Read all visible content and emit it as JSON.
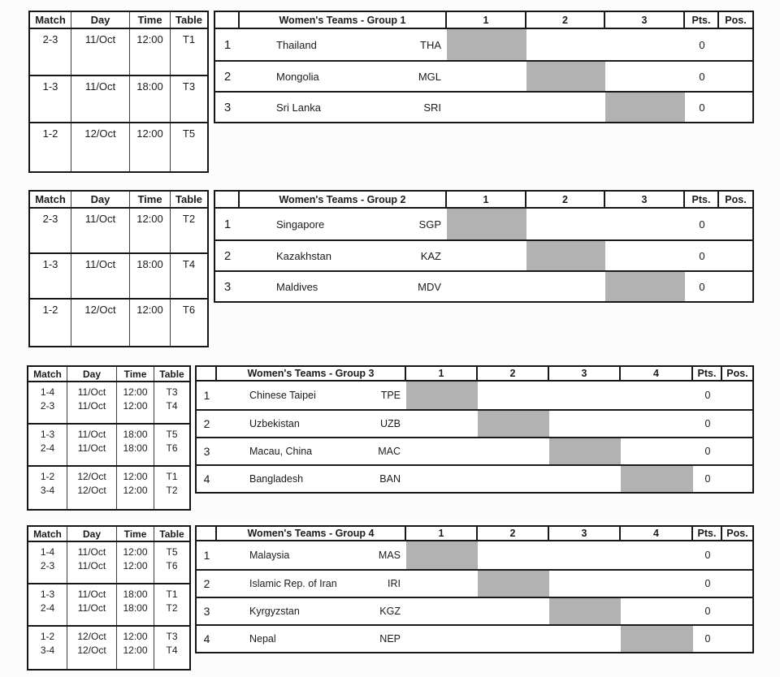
{
  "colors": {
    "grid": "#161616",
    "diagonal_fill": "#b2b2b2",
    "paper": "#fcfcfc"
  },
  "schedule_header": [
    "Match",
    "Day",
    "Time",
    "Table"
  ],
  "sections": [
    {
      "group_title": "Women's Teams - Group 1",
      "round_columns": [
        "1",
        "2",
        "3"
      ],
      "pts_header": "Pts.",
      "pos_header": "Pos.",
      "schedule_blocks": [
        [
          [
            "2-3",
            "11/Oct",
            "12:00",
            "T1"
          ]
        ],
        [
          [
            "1-3",
            "11/Oct",
            "18:00",
            "T3"
          ]
        ],
        [
          [
            "1-2",
            "12/Oct",
            "12:00",
            "T5"
          ]
        ]
      ],
      "teams": [
        {
          "rank": "1",
          "name": "Thailand",
          "code": "THA",
          "points": "0",
          "position": ""
        },
        {
          "rank": "2",
          "name": "Mongolia",
          "code": "MGL",
          "points": "0",
          "position": ""
        },
        {
          "rank": "3",
          "name": "Sri Lanka",
          "code": "SRI",
          "points": "0",
          "position": ""
        }
      ]
    },
    {
      "group_title": "Women's Teams - Group 2",
      "round_columns": [
        "1",
        "2",
        "3"
      ],
      "pts_header": "Pts.",
      "pos_header": "Pos.",
      "schedule_blocks": [
        [
          [
            "2-3",
            "11/Oct",
            "12:00",
            "T2"
          ]
        ],
        [
          [
            "1-3",
            "11/Oct",
            "18:00",
            "T4"
          ]
        ],
        [
          [
            "1-2",
            "12/Oct",
            "12:00",
            "T6"
          ]
        ]
      ],
      "teams": [
        {
          "rank": "1",
          "name": "Singapore",
          "code": "SGP",
          "points": "0",
          "position": ""
        },
        {
          "rank": "2",
          "name": "Kazakhstan",
          "code": "KAZ",
          "points": "0",
          "position": ""
        },
        {
          "rank": "3",
          "name": "Maldives",
          "code": "MDV",
          "points": "0",
          "position": ""
        }
      ]
    },
    {
      "group_title": "Women's Teams - Group 3",
      "round_columns": [
        "1",
        "2",
        "3",
        "4"
      ],
      "pts_header": "Pts.",
      "pos_header": "Pos.",
      "schedule_blocks": [
        [
          [
            "1-4",
            "11/Oct",
            "12:00",
            "T3"
          ],
          [
            "2-3",
            "11/Oct",
            "12:00",
            "T4"
          ]
        ],
        [
          [
            "1-3",
            "11/Oct",
            "18:00",
            "T5"
          ],
          [
            "2-4",
            "11/Oct",
            "18:00",
            "T6"
          ]
        ],
        [
          [
            "1-2",
            "12/Oct",
            "12:00",
            "T1"
          ],
          [
            "3-4",
            "12/Oct",
            "12:00",
            "T2"
          ]
        ]
      ],
      "teams": [
        {
          "rank": "1",
          "name": "Chinese Taipei",
          "code": "TPE",
          "points": "0",
          "position": ""
        },
        {
          "rank": "2",
          "name": "Uzbekistan",
          "code": "UZB",
          "points": "0",
          "position": ""
        },
        {
          "rank": "3",
          "name": "Macau, China",
          "code": "MAC",
          "points": "0",
          "position": ""
        },
        {
          "rank": "4",
          "name": "Bangladesh",
          "code": "BAN",
          "points": "0",
          "position": ""
        }
      ]
    },
    {
      "group_title": "Women's Teams - Group 4",
      "round_columns": [
        "1",
        "2",
        "3",
        "4"
      ],
      "pts_header": "Pts.",
      "pos_header": "Pos.",
      "schedule_blocks": [
        [
          [
            "1-4",
            "11/Oct",
            "12:00",
            "T5"
          ],
          [
            "2-3",
            "11/Oct",
            "12:00",
            "T6"
          ]
        ],
        [
          [
            "1-3",
            "11/Oct",
            "18:00",
            "T1"
          ],
          [
            "2-4",
            "11/Oct",
            "18:00",
            "T2"
          ]
        ],
        [
          [
            "1-2",
            "12/Oct",
            "12:00",
            "T3"
          ],
          [
            "3-4",
            "12/Oct",
            "12:00",
            "T4"
          ]
        ]
      ],
      "teams": [
        {
          "rank": "1",
          "name": "Malaysia",
          "code": "MAS",
          "points": "0",
          "position": ""
        },
        {
          "rank": "2",
          "name": "Islamic Rep. of Iran",
          "code": "IRI",
          "points": "0",
          "position": ""
        },
        {
          "rank": "3",
          "name": "Kyrgyzstan",
          "code": "KGZ",
          "points": "0",
          "position": ""
        },
        {
          "rank": "4",
          "name": "Nepal",
          "code": "NEP",
          "points": "0",
          "position": ""
        }
      ]
    }
  ]
}
